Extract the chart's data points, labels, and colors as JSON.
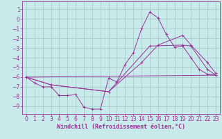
{
  "xlabel": "Windchill (Refroidissement éolien,°C)",
  "bg_color": "#c8eaea",
  "grid_color": "#a0c8c8",
  "line_color": "#993399",
  "spine_color": "#993399",
  "xlim": [
    -0.5,
    23.5
  ],
  "ylim": [
    -9.8,
    1.8
  ],
  "yticks": [
    1,
    0,
    -1,
    -2,
    -3,
    -4,
    -5,
    -6,
    -7,
    -8,
    -9
  ],
  "xticks": [
    0,
    1,
    2,
    3,
    4,
    5,
    6,
    7,
    8,
    9,
    10,
    11,
    12,
    13,
    14,
    15,
    16,
    17,
    18,
    19,
    20,
    21,
    22,
    23
  ],
  "line1_x": [
    0,
    1,
    2,
    3,
    4,
    5,
    6,
    7,
    8,
    9,
    10,
    11,
    12,
    13,
    14,
    15,
    16,
    17,
    18,
    19,
    20,
    21,
    22,
    23
  ],
  "line1_y": [
    -6.0,
    -6.6,
    -7.0,
    -7.0,
    -7.9,
    -7.9,
    -7.8,
    -9.1,
    -9.3,
    -9.3,
    -6.1,
    -6.5,
    -4.7,
    -3.5,
    -1.0,
    0.7,
    0.1,
    -1.6,
    -2.9,
    -2.8,
    -4.0,
    -5.2,
    -5.7,
    -5.8
  ],
  "line2_x": [
    0,
    23
  ],
  "line2_y": [
    -6.0,
    -5.8
  ],
  "line3_x": [
    0,
    3,
    10,
    15,
    19,
    20,
    22,
    23
  ],
  "line3_y": [
    -6.0,
    -6.8,
    -7.5,
    -2.8,
    -2.7,
    -2.8,
    -5.2,
    -5.8
  ],
  "line4_x": [
    0,
    3,
    10,
    14,
    16,
    19,
    20,
    22,
    23
  ],
  "line4_y": [
    -6.0,
    -6.8,
    -7.5,
    -4.5,
    -2.7,
    -1.7,
    -2.7,
    -4.5,
    -5.6
  ],
  "tick_fontsize": 5.5,
  "xlabel_fontsize": 6.0,
  "xlabel_fontweight": "bold"
}
